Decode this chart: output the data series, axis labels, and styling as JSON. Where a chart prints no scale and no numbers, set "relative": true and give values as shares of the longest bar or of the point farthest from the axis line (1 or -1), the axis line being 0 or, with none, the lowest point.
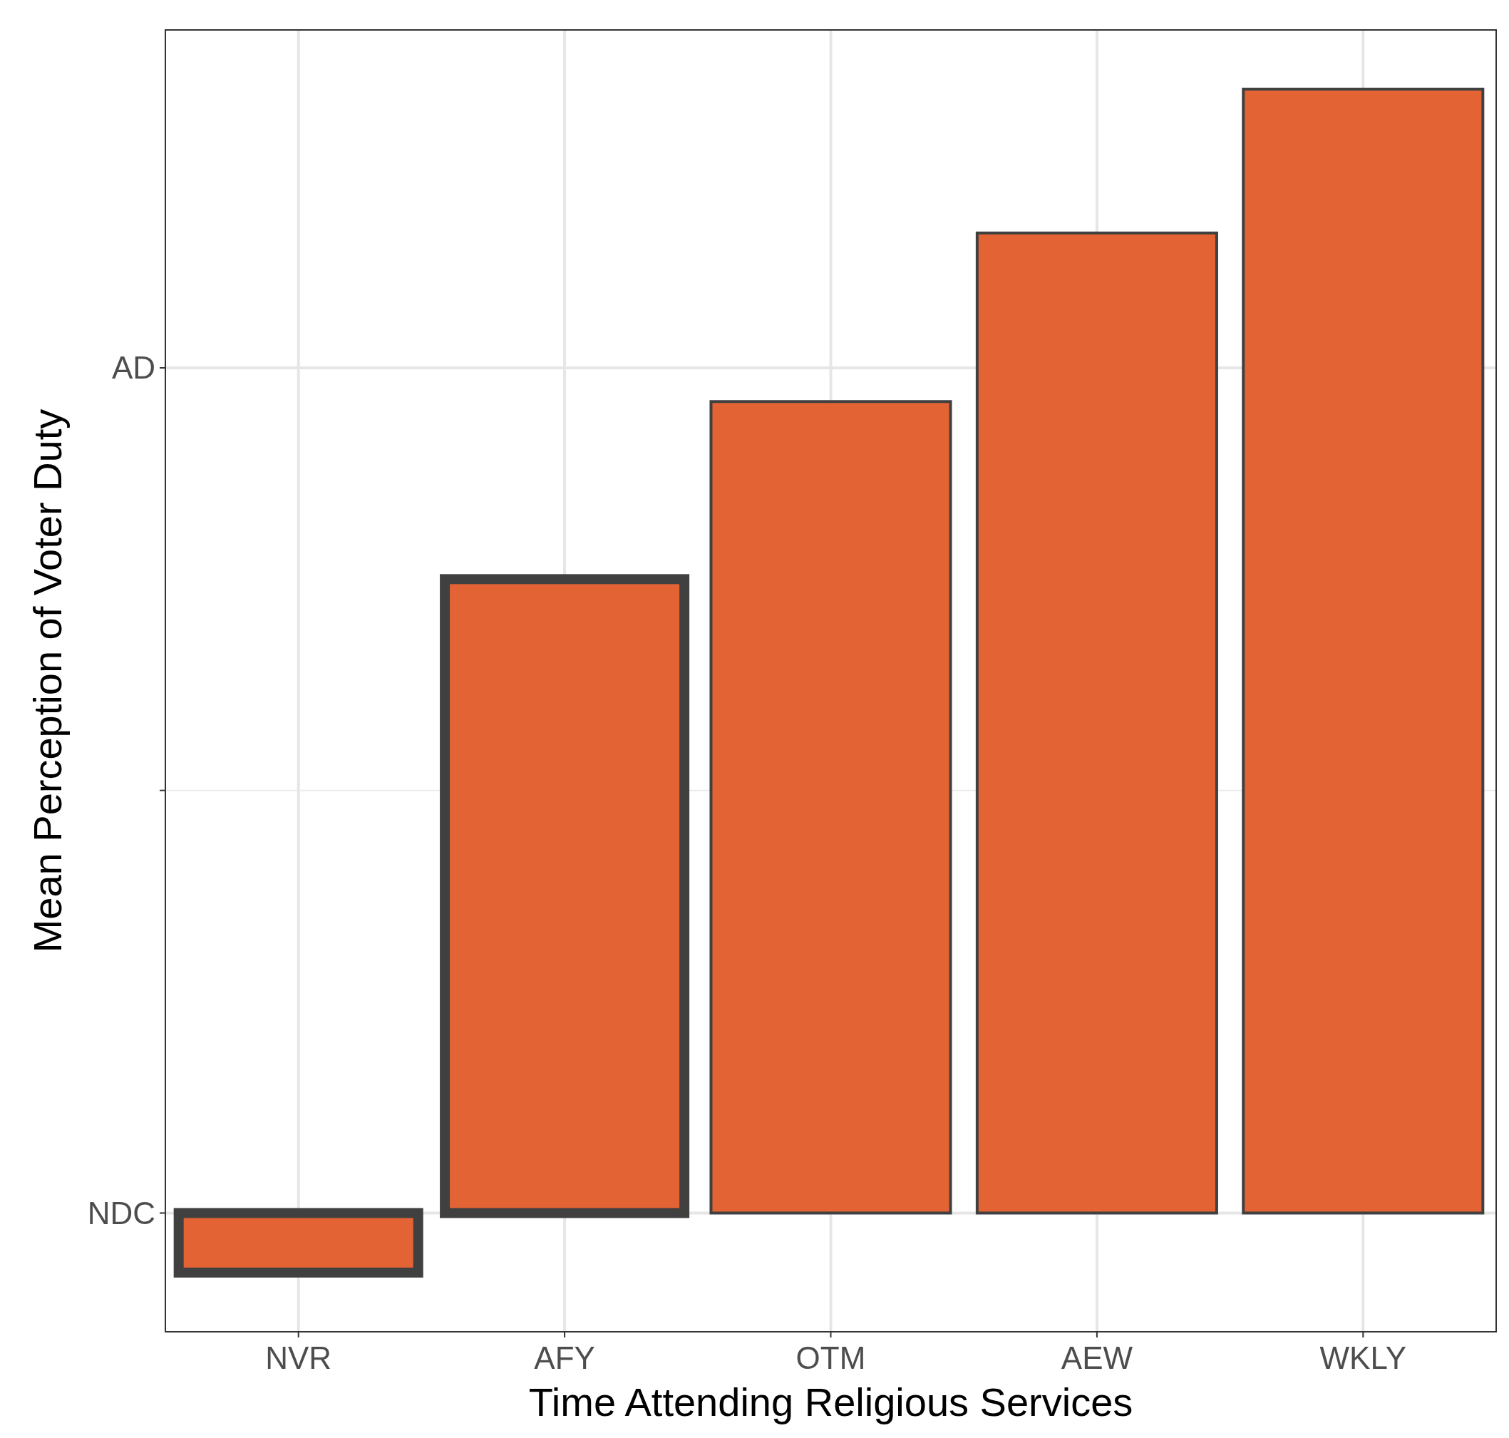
{
  "chart_data": {
    "type": "bar",
    "xlabel": "Time Attending Religious Services",
    "ylabel": "Mean Perception of Voter Duty",
    "categories": [
      "NVR",
      "AFY",
      "OTM",
      "AEW",
      "WKLY"
    ],
    "values": [
      -0.053,
      0.564,
      0.722,
      0.872,
      1
    ],
    "color": "#e46334",
    "relative": true,
    "ref_lines": [
      {
        "axis": "y",
        "value": 0,
        "label": "NDC",
        "color": "#e6e6e6"
      },
      {
        "axis": "y",
        "value": 0.376,
        "color": "#ebebeb"
      },
      {
        "axis": "y",
        "value": 0.752,
        "label": "AD",
        "color": "#e6e6e6"
      }
    ],
    "grid": true
  }
}
